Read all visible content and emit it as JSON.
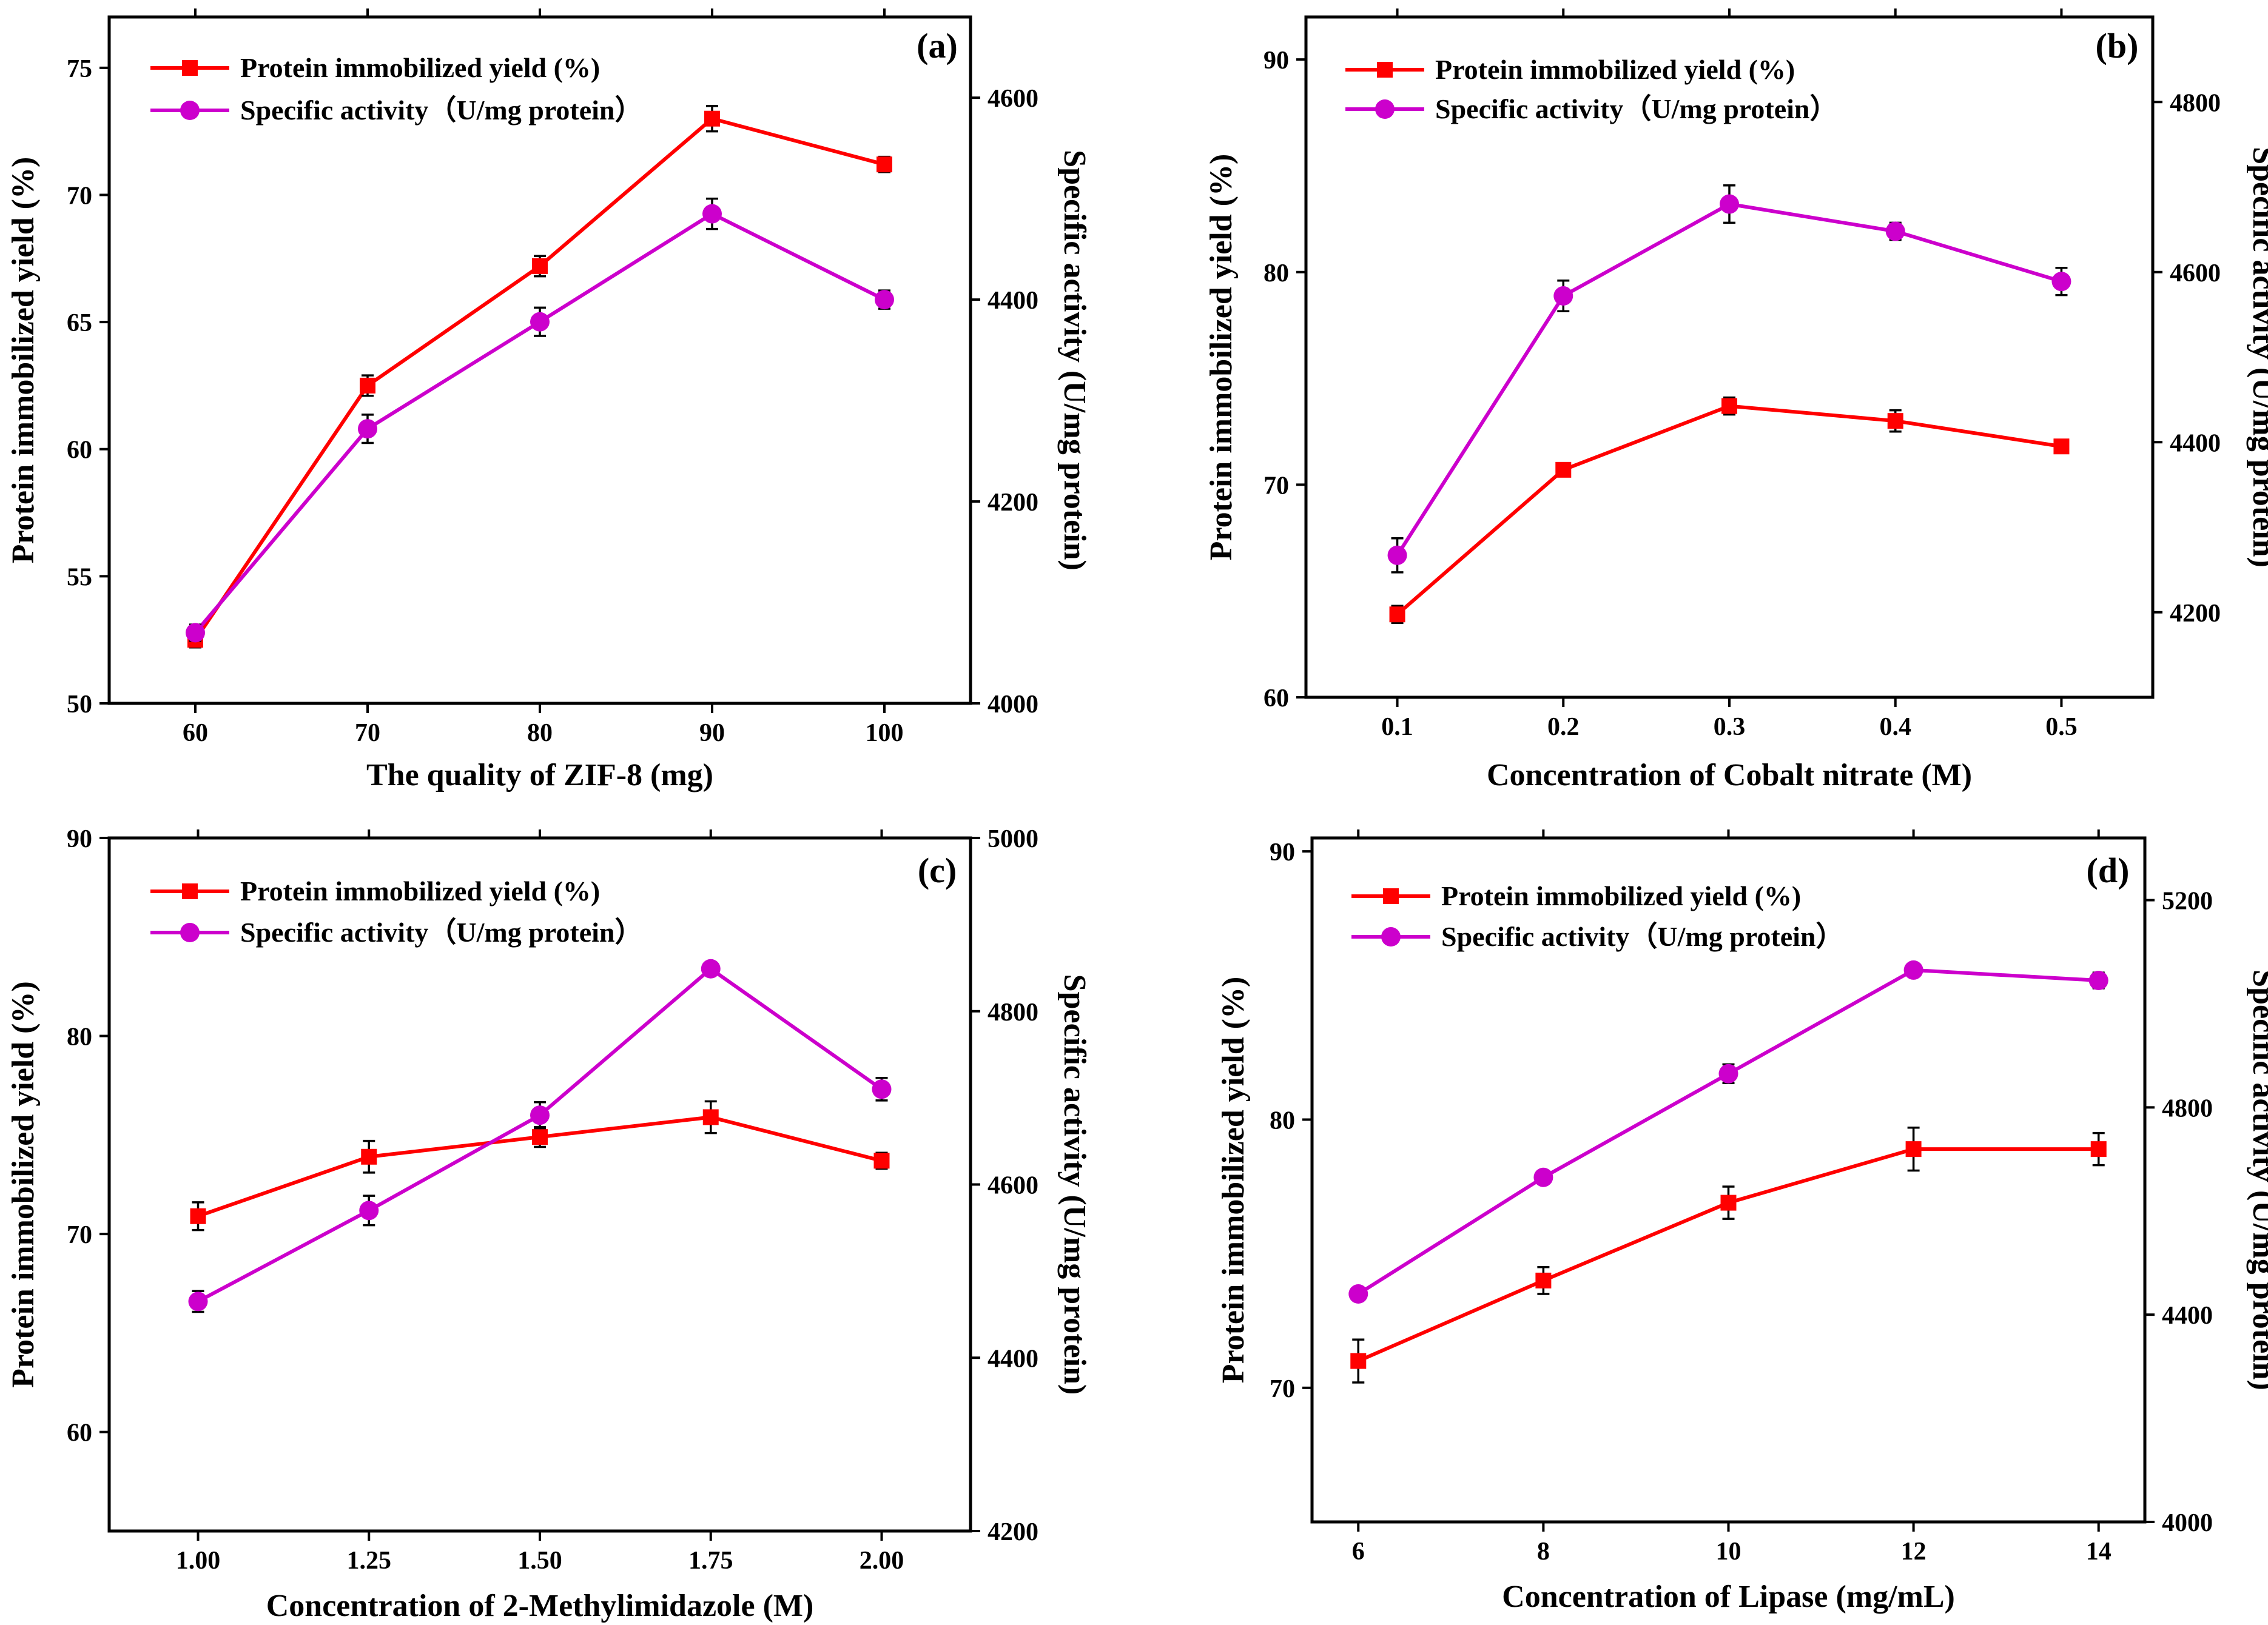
{
  "colors": {
    "protein": "#ff0000",
    "specific": "#cc00cc",
    "axis": "#000000"
  },
  "chart_data": [
    {
      "id": "a",
      "type": "line",
      "panel_label": "(a)",
      "xlabel": "The quality of ZIF-8 (mg)",
      "ylabel": "Protein immobilized  yield (%)",
      "y2label": "Specific activity (U/mg protein)",
      "x": [
        60,
        70,
        80,
        90,
        100
      ],
      "xticks": [
        "60",
        "70",
        "80",
        "90",
        "100"
      ],
      "xlim": [
        55,
        105
      ],
      "ylim": [
        50,
        77
      ],
      "yticks": [
        50,
        55,
        60,
        65,
        70,
        75
      ],
      "y2lim": [
        4000,
        4680
      ],
      "y2ticks": [
        4000,
        4200,
        4400,
        4600
      ],
      "legend": [
        "Protein immobilized  yield (%)",
        "Specific activity（U/mg protein）"
      ],
      "series": [
        {
          "name": "Protein immobilized  yield (%)",
          "axis": "left",
          "marker": "square",
          "values": [
            52.5,
            62.5,
            67.2,
            73.0,
            71.2
          ],
          "errors": [
            0.3,
            0.4,
            0.4,
            0.5,
            0.3
          ]
        },
        {
          "name": "Specific activity（U/mg protein）",
          "axis": "right",
          "marker": "circle",
          "values": [
            4070,
            4272,
            4378,
            4485,
            4400
          ],
          "errors": [
            8,
            14,
            14,
            15,
            9
          ]
        }
      ]
    },
    {
      "id": "b",
      "type": "line",
      "panel_label": "(b)",
      "xlabel": "Concentration of Cobalt nitrate (M)",
      "ylabel": "Protein immobilized  yield (%)",
      "y2label": "Specific activity (U/mg protein)",
      "x": [
        0.1,
        0.2,
        0.3,
        0.4,
        0.5
      ],
      "xticks": [
        "0.1",
        "0.2",
        "0.3",
        "0.4",
        "0.5"
      ],
      "xlim": [
        0.045,
        0.555
      ],
      "ylim": [
        60,
        92
      ],
      "yticks": [
        60,
        70,
        80,
        90
      ],
      "y2lim": [
        4100,
        4900
      ],
      "y2ticks": [
        4200,
        4400,
        4600,
        4800
      ],
      "legend": [
        "Protein immobilized  yield (%)",
        "Specific activity（U/mg protein）"
      ],
      "series": [
        {
          "name": "Protein immobilized  yield (%)",
          "axis": "left",
          "marker": "square",
          "values": [
            63.9,
            70.7,
            73.7,
            73.0,
            71.8
          ],
          "errors": [
            0.4,
            0.3,
            0.4,
            0.5,
            0.3
          ]
        },
        {
          "name": "Specific activity（U/mg protein）",
          "axis": "right",
          "marker": "circle",
          "values": [
            4267,
            4572,
            4680,
            4648,
            4589
          ],
          "errors": [
            20,
            18,
            22,
            10,
            16
          ]
        }
      ]
    },
    {
      "id": "c",
      "type": "line",
      "panel_label": "(c)",
      "xlabel": "Concentration of 2-Methylimidazole (M)",
      "ylabel": "Protein immobilized  yield (%)",
      "y2label": "Specific activity (U/mg protein)",
      "x": [
        1.0,
        1.25,
        1.5,
        1.75,
        2.0
      ],
      "xticks": [
        "1.00",
        "1.25",
        "1.50",
        "1.75",
        "2.00"
      ],
      "xlim": [
        0.87,
        2.13
      ],
      "ylim": [
        55,
        90
      ],
      "yticks": [
        60,
        70,
        80,
        90
      ],
      "y2lim": [
        4200,
        5000
      ],
      "y2ticks": [
        4200,
        4400,
        4600,
        4800,
        5000
      ],
      "legend": [
        "Protein immobilized  yield (%)",
        "Specific activity（U/mg protein）"
      ],
      "series": [
        {
          "name": "Protein immobilized  yield (%)",
          "axis": "left",
          "marker": "square",
          "values": [
            70.9,
            73.9,
            74.9,
            75.9,
            73.7
          ],
          "errors": [
            0.7,
            0.8,
            0.5,
            0.8,
            0.4
          ]
        },
        {
          "name": "Specific activity（U/mg protein）",
          "axis": "right",
          "marker": "circle",
          "values": [
            4465,
            4570,
            4680,
            4849,
            4710
          ],
          "errors": [
            12,
            17,
            15,
            7,
            13
          ]
        }
      ]
    },
    {
      "id": "d",
      "type": "line",
      "panel_label": "(d)",
      "xlabel": "Concentration of Lipase (mg/mL)",
      "ylabel": "Protein immobilized yield (%)",
      "y2label": "Specific activity (U/mg protein)",
      "x": [
        6,
        8,
        10,
        12,
        14
      ],
      "xticks": [
        "6",
        "8",
        "10",
        "12",
        "14"
      ],
      "xlim": [
        5.5,
        14.5
      ],
      "ylim": [
        65,
        90.5
      ],
      "yticks": [
        70,
        80,
        90
      ],
      "y2lim": [
        4000,
        5320
      ],
      "y2ticks": [
        4000,
        4400,
        4800,
        5200
      ],
      "legend": [
        "Protein immobilized yield (%)",
        "Specific activity（U/mg protein）"
      ],
      "series": [
        {
          "name": "Protein immobilized yield (%)",
          "axis": "left",
          "marker": "square",
          "values": [
            71.0,
            74.0,
            76.9,
            78.9,
            78.9
          ],
          "errors": [
            0.8,
            0.5,
            0.6,
            0.8,
            0.6
          ]
        },
        {
          "name": "Specific activity（U/mg protein）",
          "axis": "right",
          "marker": "circle",
          "values": [
            4440,
            4665,
            4865,
            5065,
            5045
          ],
          "errors": [
            8,
            12,
            18,
            10,
            15
          ]
        }
      ]
    }
  ]
}
